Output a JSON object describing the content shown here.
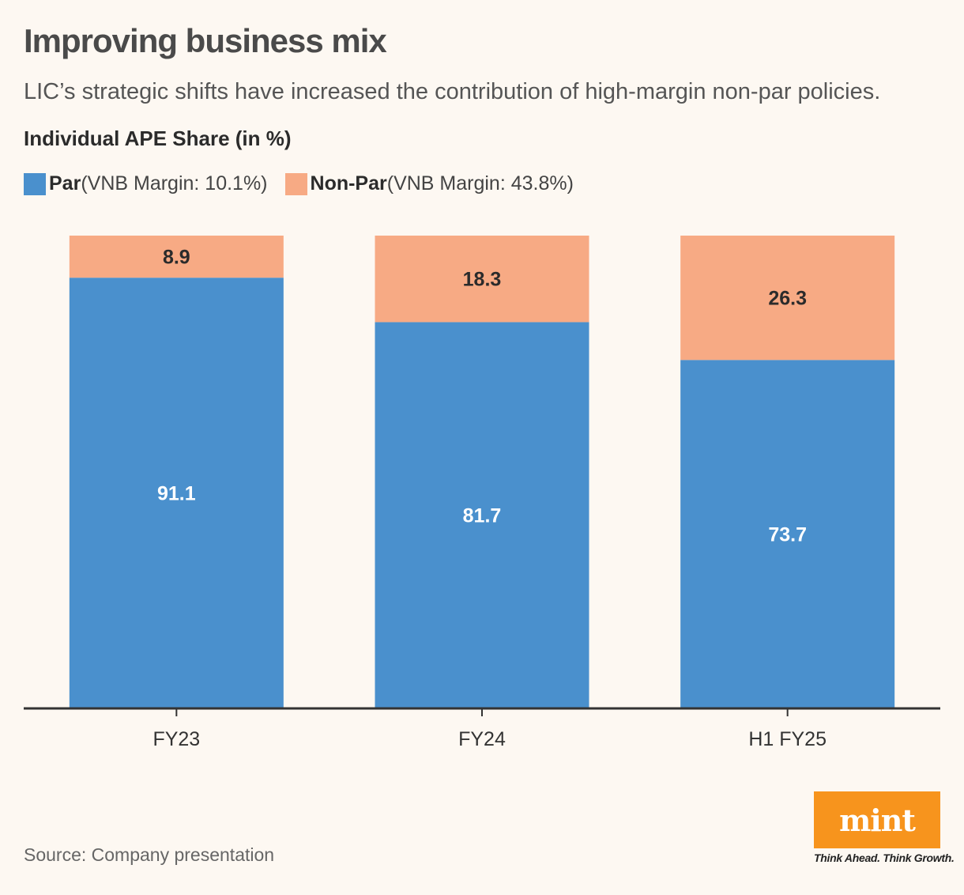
{
  "header": {
    "title": "Improving business mix",
    "subtitle": "LIC’s strategic shifts have increased the contribution of high-margin non-par policies.",
    "chart_heading": "Individual APE Share (in %)"
  },
  "legend": {
    "par_name": "Par",
    "par_detail": "(VNB Margin: 10.1%)",
    "nonpar_name": "Non-Par",
    "nonpar_detail": "(VNB Margin: 43.8%)"
  },
  "colors": {
    "par": "#4a90cd",
    "nonpar": "#f7aa84",
    "background": "#fdf8f2",
    "axis": "#333333",
    "brand": "#f7941d"
  },
  "chart_data": {
    "type": "bar",
    "stacked": true,
    "title": "Individual APE Share (in %)",
    "xlabel": "",
    "ylabel": "",
    "ylim": [
      0,
      100
    ],
    "grid": false,
    "legend_position": "top-left",
    "categories": [
      "FY23",
      "FY24",
      "H1 FY25"
    ],
    "series": [
      {
        "name": "Par",
        "color": "#4a90cd",
        "label_color": "#ffffff",
        "values": [
          91.1,
          81.7,
          73.7
        ]
      },
      {
        "name": "Non-Par",
        "color": "#f7aa84",
        "label_color": "#2b2b2b",
        "values": [
          8.9,
          18.3,
          26.3
        ]
      }
    ]
  },
  "footer": {
    "source": "Source: Company presentation",
    "logo_text": "mint",
    "logo_tagline": "Think Ahead. Think Growth."
  }
}
